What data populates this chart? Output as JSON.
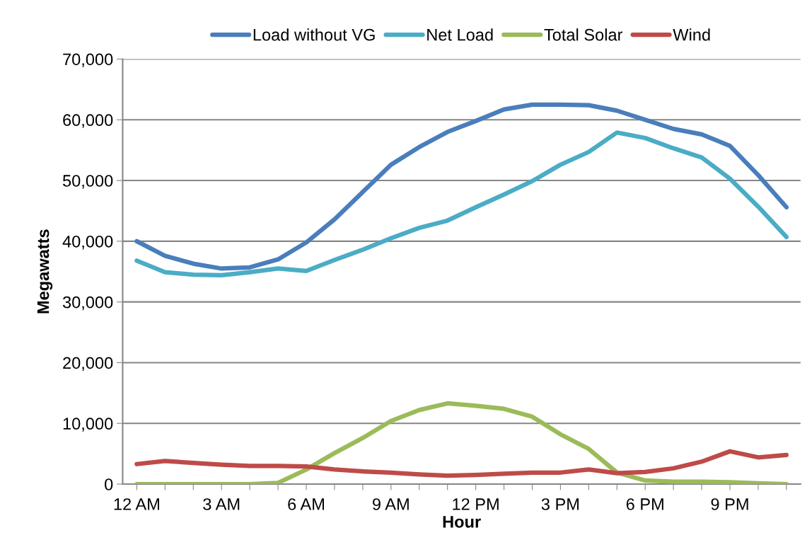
{
  "chart_data": {
    "type": "line",
    "xlabel": "Hour",
    "ylabel": "Megawatts",
    "categories": [
      "12 AM",
      null,
      null,
      "3 AM",
      null,
      null,
      "6 AM",
      null,
      null,
      "9 AM",
      null,
      null,
      "12 PM",
      null,
      null,
      "3 PM",
      null,
      null,
      "6 PM",
      null,
      null,
      "9 PM",
      null,
      null
    ],
    "series": [
      {
        "name": "Load without VG",
        "color": "#4a7ebb",
        "values": [
          40000,
          37600,
          36300,
          35500,
          35700,
          37000,
          39800,
          43600,
          48100,
          52600,
          55500,
          58000,
          59800,
          61700,
          62500,
          62500,
          62400,
          61500,
          60000,
          58500,
          57600,
          55700,
          50900,
          45600
        ]
      },
      {
        "name": "Net Load",
        "color": "#4bacc6",
        "values": [
          36800,
          34900,
          34500,
          34400,
          34900,
          35500,
          35100,
          36900,
          38600,
          40500,
          42200,
          43400,
          45600,
          47700,
          49900,
          52600,
          54700,
          57900,
          57000,
          55300,
          53800,
          50300,
          45700,
          40700
        ]
      },
      {
        "name": "Total Solar",
        "color": "#9bbb59",
        "values": [
          0,
          0,
          0,
          0,
          0,
          200,
          2400,
          5100,
          7600,
          10400,
          12200,
          13300,
          12900,
          12400,
          11100,
          8200,
          5800,
          1900,
          600,
          400,
          400,
          300,
          150,
          0
        ]
      },
      {
        "name": "Wind",
        "color": "#be4b48",
        "values": [
          3300,
          3800,
          3500,
          3200,
          3000,
          3000,
          2900,
          2400,
          2100,
          1900,
          1600,
          1400,
          1500,
          1700,
          1900,
          1900,
          2400,
          1800,
          2000,
          2600,
          3700,
          5400,
          4400,
          4800
        ]
      }
    ],
    "ylim": [
      0,
      70000
    ],
    "yticks": [
      {
        "value": 0,
        "label": "0"
      },
      {
        "value": 10000,
        "label": "10,000"
      },
      {
        "value": 20000,
        "label": "20,000"
      },
      {
        "value": 30000,
        "label": "30,000"
      },
      {
        "value": 40000,
        "label": "40,000"
      },
      {
        "value": 50000,
        "label": "50,000"
      },
      {
        "value": 60000,
        "label": "60,000"
      },
      {
        "value": 70000,
        "label": "70,000"
      }
    ],
    "grid": "y",
    "legend": "top",
    "marker": "none",
    "line_style": "solid"
  }
}
